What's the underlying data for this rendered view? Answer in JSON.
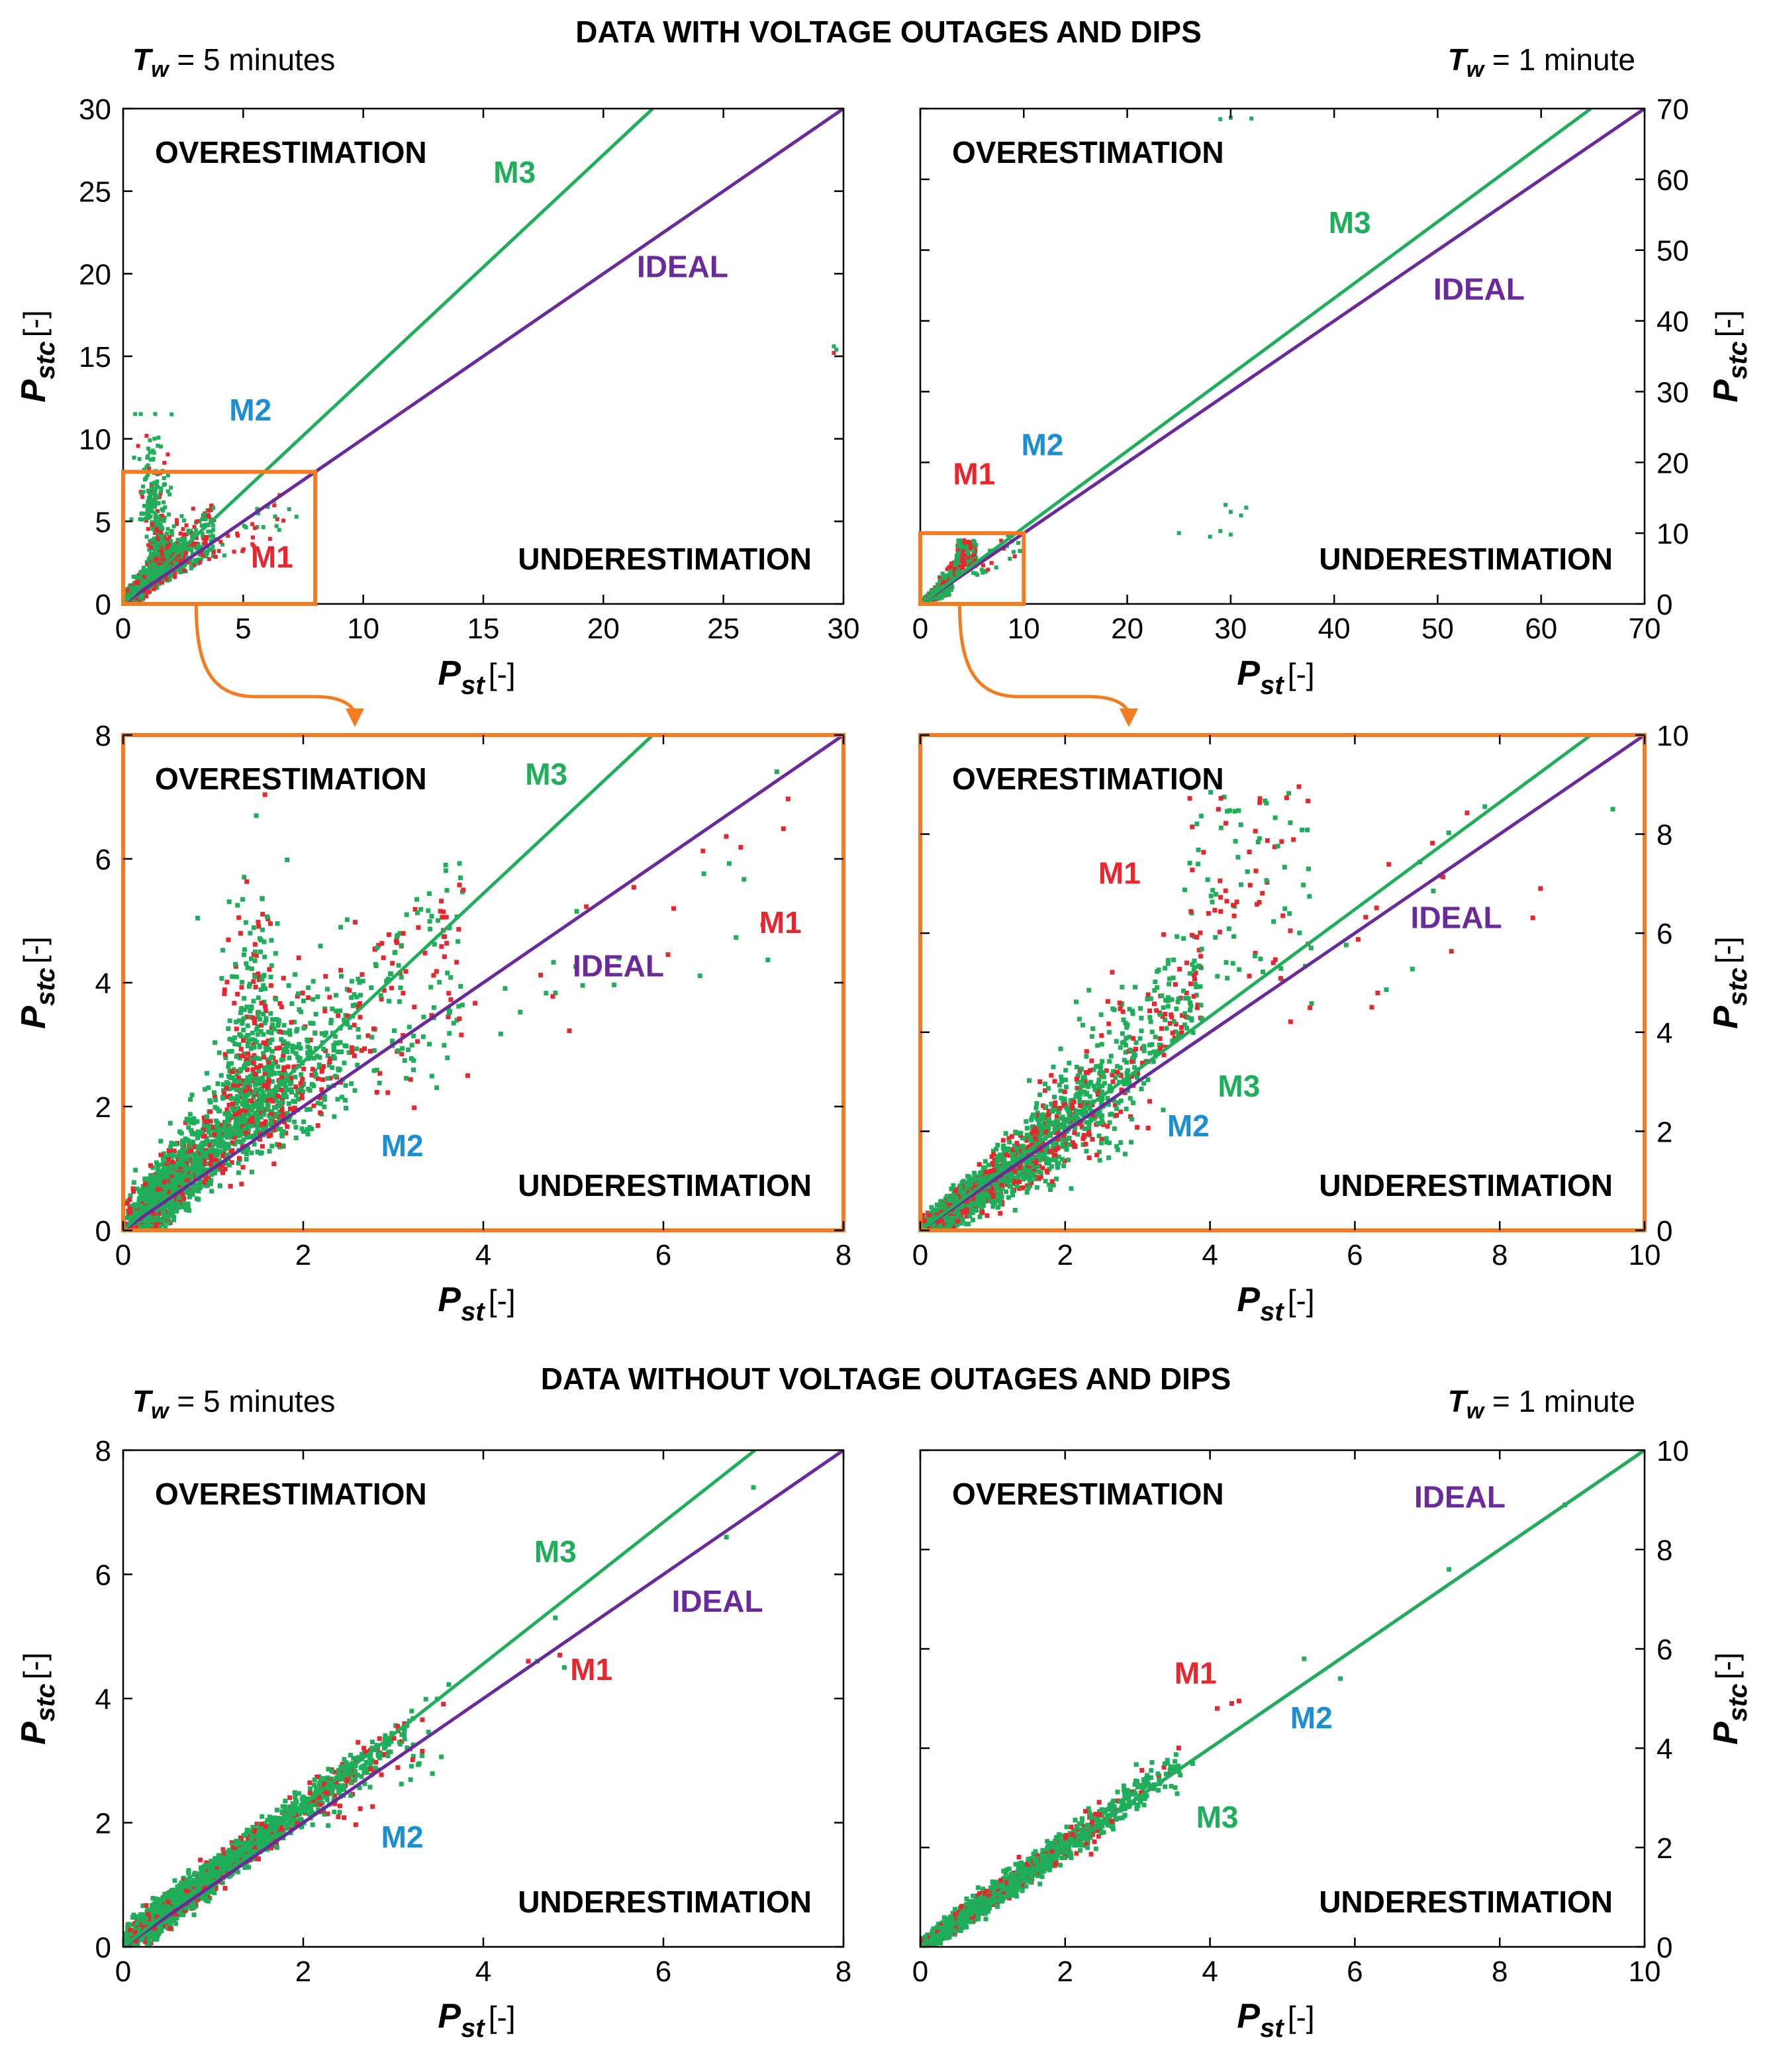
{
  "sections": {
    "with": "DATA WITH VOLTAGE OUTAGES AND DIPS",
    "without": "DATA WITHOUT VOLTAGE OUTAGES AND DIPS"
  },
  "tw": {
    "symbol": "T",
    "sub": "w",
    "five": " = 5 minutes",
    "one": " = 1 minute"
  },
  "axis": {
    "x": "P",
    "x_sub": "st",
    "y": "P",
    "y_sub": "stc",
    "unit": "[-]"
  },
  "regions": {
    "over": "OVERESTIMATION",
    "under": "UNDERESTIMATION"
  },
  "colors": {
    "m1": "#e8262e",
    "m2": "#1b8fd1",
    "m3": "#1fae5a",
    "ideal": "#6a2a9c",
    "zoom": "#f47b20"
  },
  "chart_data": [
    {
      "id": "a",
      "type": "scatter",
      "window": "5 minutes",
      "dataset": "with outages and dips",
      "xlim": [
        0,
        30
      ],
      "ylim": [
        0,
        30
      ],
      "xticks": [
        "0",
        "5",
        "10",
        "15",
        "20",
        "25",
        "30"
      ],
      "yticks": [
        "0",
        "5",
        "10",
        "15",
        "20",
        "25",
        "30"
      ],
      "series": [
        {
          "name": "IDEAL",
          "slope": 1.0
        },
        {
          "name": "M3",
          "slope": 1.36
        },
        {
          "name": "M1",
          "points": "scatter"
        },
        {
          "name": "M2",
          "points": "scatter"
        }
      ],
      "labels": [
        {
          "text": "M3",
          "series": "m3",
          "x": 16.3,
          "y": 25.5
        },
        {
          "text": "IDEAL",
          "series": "ideal",
          "x": 23.3,
          "y": 19.8
        },
        {
          "text": "M2",
          "series": "m2",
          "x": 5.3,
          "y": 11.1
        },
        {
          "text": "M1",
          "series": "m1",
          "x": 6.2,
          "y": 2.2
        }
      ],
      "zoom_box": [
        0,
        8,
        0,
        8
      ]
    },
    {
      "id": "b",
      "type": "scatter",
      "window": "1 minute",
      "dataset": "with outages and dips",
      "xlim": [
        0,
        70
      ],
      "ylim": [
        0,
        70
      ],
      "xticks": [
        "0",
        "10",
        "20",
        "30",
        "40",
        "50",
        "60",
        "70"
      ],
      "yticks": [
        "0",
        "10",
        "20",
        "30",
        "40",
        "50",
        "60",
        "70"
      ],
      "series": [
        {
          "name": "IDEAL",
          "slope": 1.0
        },
        {
          "name": "M3",
          "slope": 1.08
        },
        {
          "name": "M1",
          "points": "scatter"
        },
        {
          "name": "M2",
          "points": "scatter"
        }
      ],
      "labels": [
        {
          "text": "M3",
          "series": "m3",
          "x": 41.5,
          "y": 52.4
        },
        {
          "text": "IDEAL",
          "series": "ideal",
          "x": 54.0,
          "y": 43.0
        },
        {
          "text": "M2",
          "series": "m2",
          "x": 11.8,
          "y": 21.0
        },
        {
          "text": "M1",
          "series": "m1",
          "x": 5.2,
          "y": 16.9
        }
      ],
      "zoom_box": [
        0,
        10,
        0,
        10
      ]
    },
    {
      "id": "c",
      "type": "scatter",
      "window": "5 minutes",
      "dataset": "with outages and dips (zoom)",
      "xlim": [
        0,
        8
      ],
      "ylim": [
        0,
        8
      ],
      "xticks": [
        "0",
        "2",
        "4",
        "6",
        "8"
      ],
      "yticks": [
        "0",
        "2",
        "4",
        "6",
        "8"
      ],
      "series": [
        {
          "name": "IDEAL",
          "slope": 1.0
        },
        {
          "name": "M3",
          "slope": 1.36
        },
        {
          "name": "M1",
          "points": "scatter"
        },
        {
          "name": "M2",
          "points": "scatter"
        }
      ],
      "labels": [
        {
          "text": "M3",
          "series": "m3",
          "x": 4.7,
          "y": 7.2
        },
        {
          "text": "IDEAL",
          "series": "ideal",
          "x": 5.5,
          "y": 4.1
        },
        {
          "text": "M1",
          "series": "m1",
          "x": 7.3,
          "y": 4.8
        },
        {
          "text": "M2",
          "series": "m2",
          "x": 3.1,
          "y": 1.2
        }
      ],
      "frame": "orange"
    },
    {
      "id": "d",
      "type": "scatter",
      "window": "1 minute",
      "dataset": "with outages and dips (zoom)",
      "xlim": [
        0,
        10
      ],
      "ylim": [
        0,
        10
      ],
      "xticks": [
        "0",
        "2",
        "4",
        "6",
        "8",
        "10"
      ],
      "yticks": [
        "0",
        "2",
        "4",
        "6",
        "8",
        "10"
      ],
      "series": [
        {
          "name": "IDEAL",
          "slope": 1.0
        },
        {
          "name": "M3",
          "slope": 1.08
        },
        {
          "name": "M1",
          "points": "scatter"
        },
        {
          "name": "M2",
          "points": "scatter"
        }
      ],
      "labels": [
        {
          "text": "M1",
          "series": "m1",
          "x": 2.75,
          "y": 7.0
        },
        {
          "text": "IDEAL",
          "series": "ideal",
          "x": 7.4,
          "y": 6.1
        },
        {
          "text": "M3",
          "series": "m3",
          "x": 4.4,
          "y": 2.7
        },
        {
          "text": "M2",
          "series": "m2",
          "x": 3.7,
          "y": 1.9
        }
      ],
      "frame": "orange"
    },
    {
      "id": "e",
      "type": "scatter",
      "window": "5 minutes",
      "dataset": "without outages and dips",
      "xlim": [
        0,
        8
      ],
      "ylim": [
        0,
        8
      ],
      "xticks": [
        "0",
        "2",
        "4",
        "6",
        "8"
      ],
      "yticks": [
        "0",
        "2",
        "4",
        "6",
        "8"
      ],
      "series": [
        {
          "name": "IDEAL",
          "slope": 1.0
        },
        {
          "name": "M3",
          "slope": 1.14
        },
        {
          "name": "M1",
          "points": "scatter"
        },
        {
          "name": "M2",
          "points": "scatter"
        }
      ],
      "labels": [
        {
          "text": "M3",
          "series": "m3",
          "x": 4.8,
          "y": 6.2
        },
        {
          "text": "IDEAL",
          "series": "ideal",
          "x": 6.6,
          "y": 5.4
        },
        {
          "text": "M1",
          "series": "m1",
          "x": 5.2,
          "y": 4.3
        },
        {
          "text": "M2",
          "series": "m2",
          "x": 3.1,
          "y": 1.6
        }
      ]
    },
    {
      "id": "f",
      "type": "scatter",
      "window": "1 minute",
      "dataset": "without outages and dips",
      "xlim": [
        0,
        10
      ],
      "ylim": [
        0,
        10
      ],
      "xticks": [
        "0",
        "2",
        "4",
        "6",
        "8",
        "10"
      ],
      "yticks": [
        "0",
        "2",
        "4",
        "6",
        "8",
        "10"
      ],
      "series": [
        {
          "name": "IDEAL",
          "slope": 1.0
        },
        {
          "name": "M3",
          "slope": 1.0
        },
        {
          "name": "M1",
          "points": "scatter"
        },
        {
          "name": "M2",
          "points": "scatter"
        }
      ],
      "labels": [
        {
          "text": "IDEAL",
          "series": "ideal",
          "x": 7.45,
          "y": 8.85
        },
        {
          "text": "M1",
          "series": "m1",
          "x": 3.8,
          "y": 5.3
        },
        {
          "text": "M2",
          "series": "m2",
          "x": 5.4,
          "y": 4.4
        },
        {
          "text": "M3",
          "series": "m3",
          "x": 4.1,
          "y": 2.4
        }
      ]
    }
  ]
}
